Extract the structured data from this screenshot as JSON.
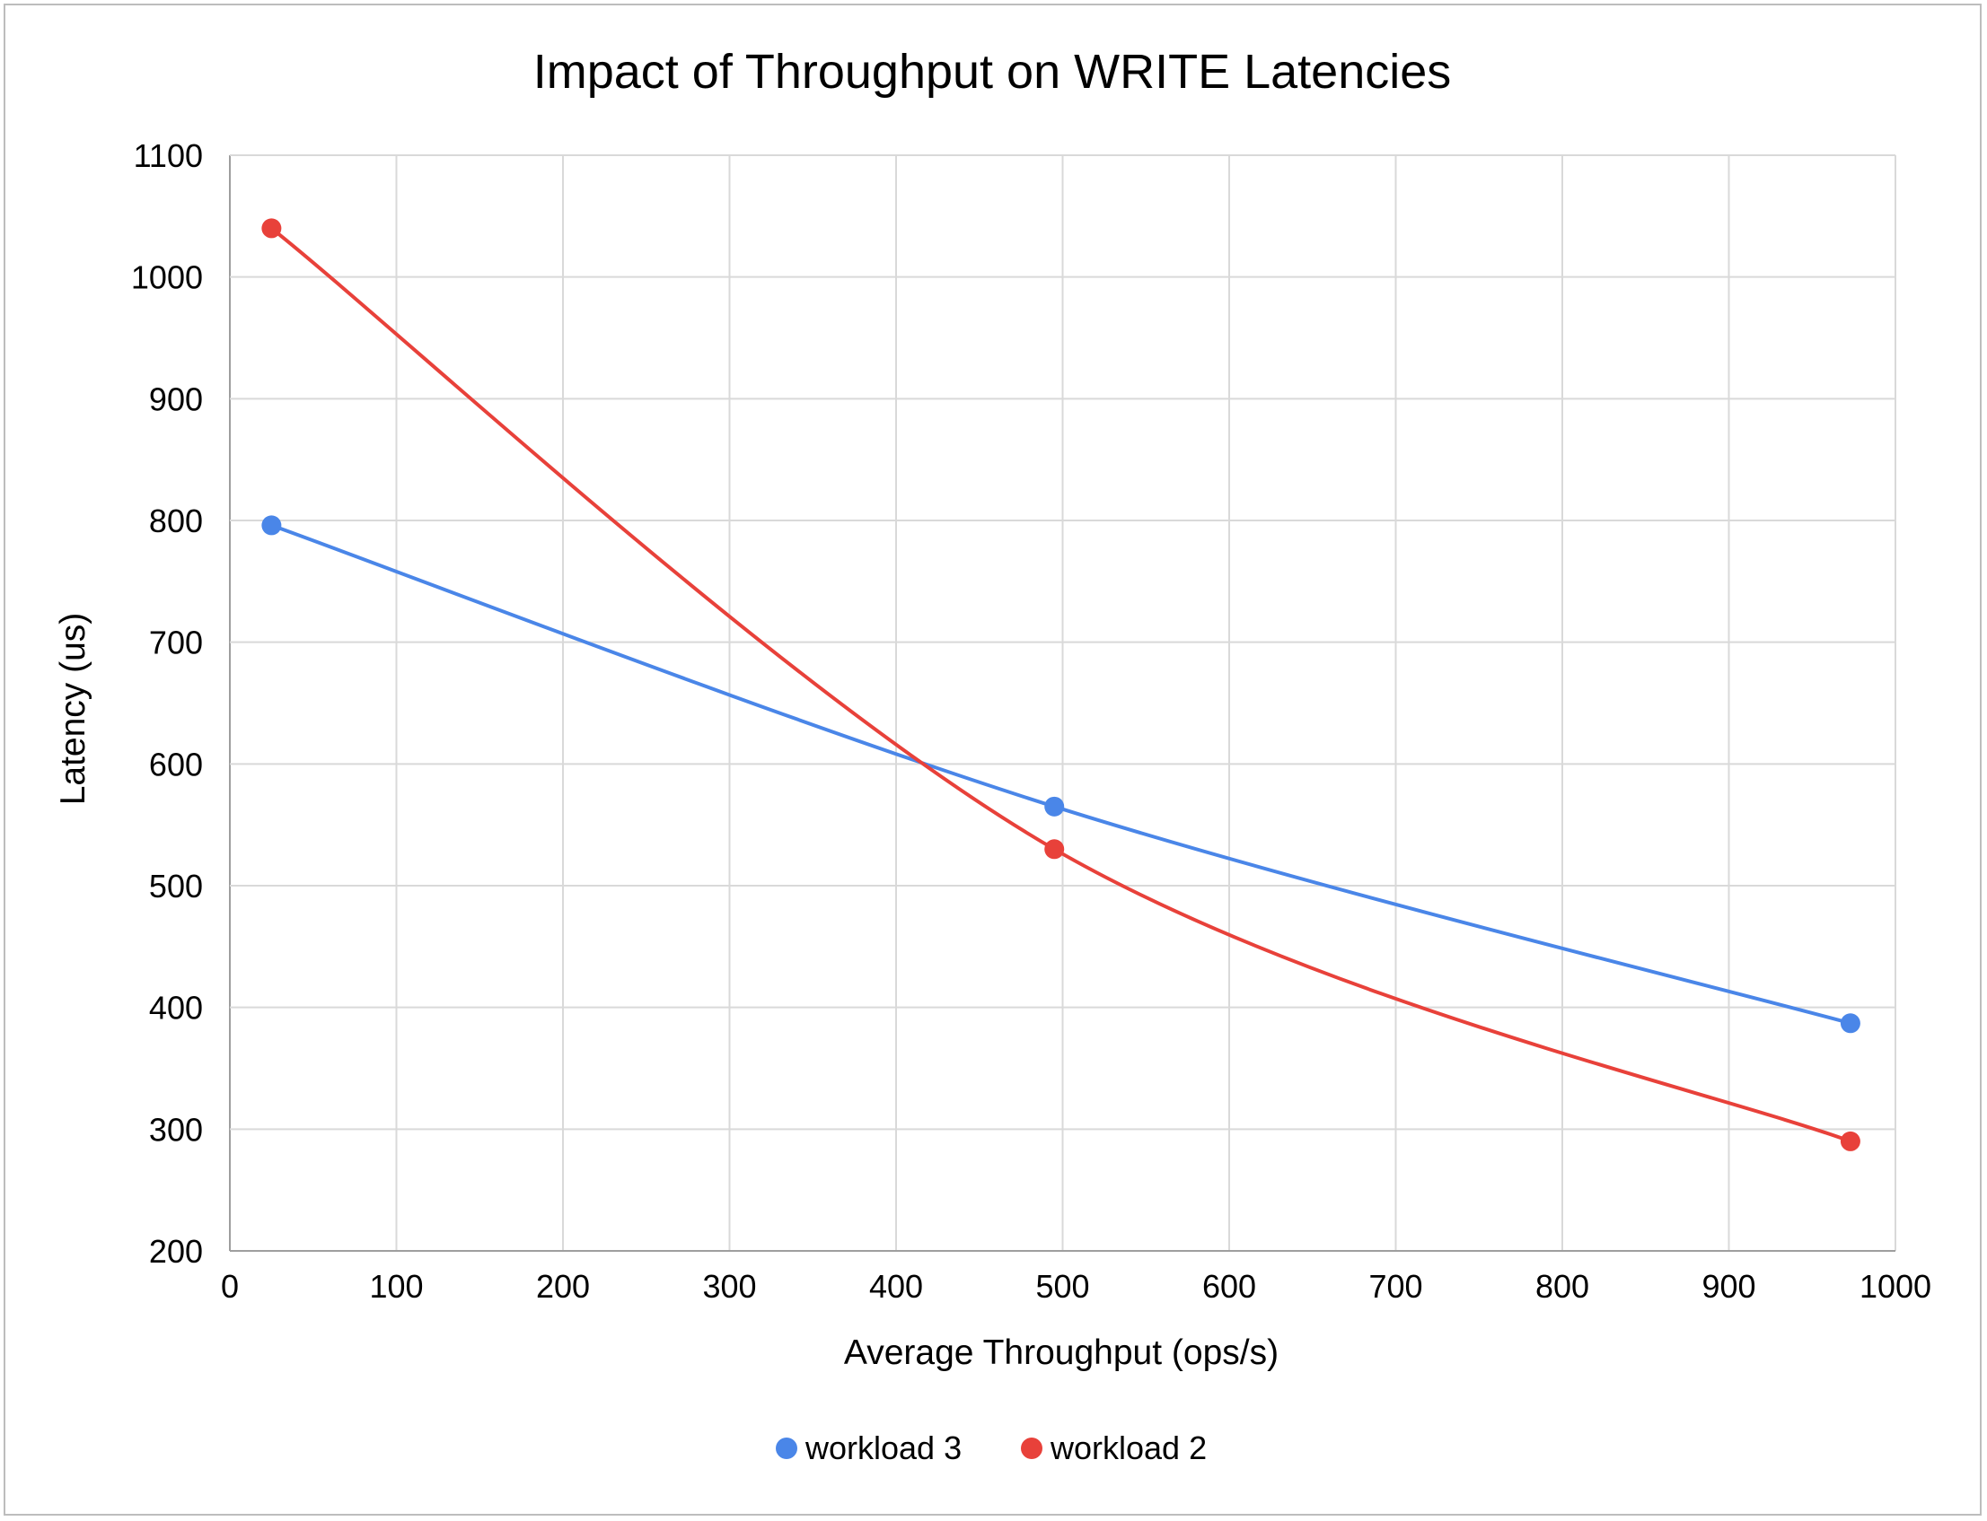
{
  "chart_data": {
    "type": "scatter",
    "title": "Impact of Throughput on WRITE Latencies",
    "xlabel": "Average Throughput (ops/s)",
    "ylabel": "Latency (us)",
    "xlim": [
      0,
      1000
    ],
    "ylim": [
      200,
      1100
    ],
    "x_ticks": [
      0,
      100,
      200,
      300,
      400,
      500,
      600,
      700,
      800,
      900,
      1000
    ],
    "y_ticks": [
      200,
      300,
      400,
      500,
      600,
      700,
      800,
      900,
      1000,
      1100
    ],
    "grid": true,
    "legend_position": "bottom",
    "series": [
      {
        "name": "workload 3",
        "color": "#4a86e8",
        "x": [
          25,
          495,
          973
        ],
        "y": [
          796,
          565,
          387
        ]
      },
      {
        "name": "workload 2",
        "color": "#e8413a",
        "x": [
          25,
          495,
          973
        ],
        "y": [
          1040,
          530,
          290
        ]
      }
    ]
  }
}
